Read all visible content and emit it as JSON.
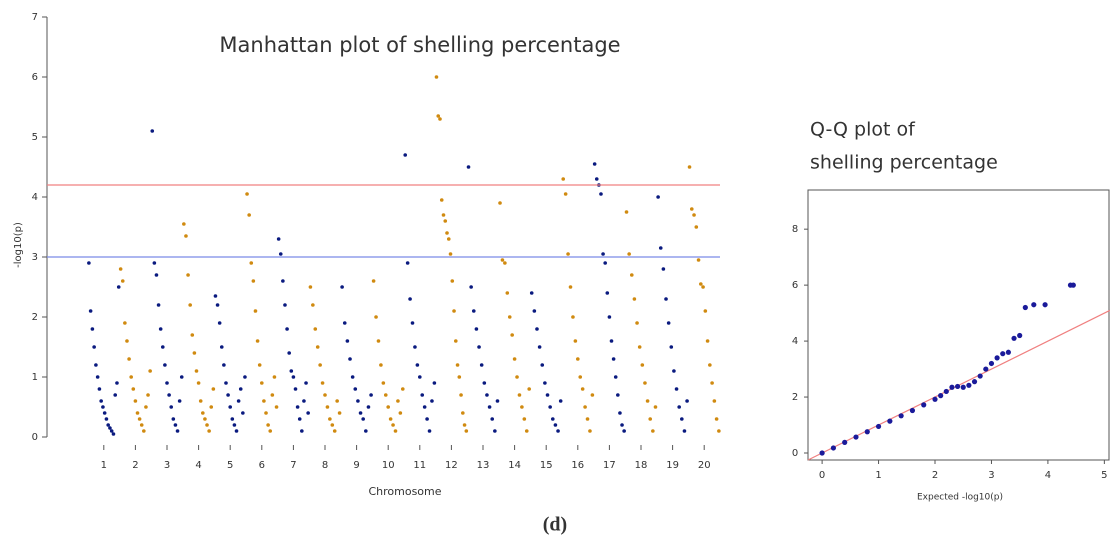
{
  "chart_data": [
    {
      "type": "manhattan",
      "title": "Manhattan plot of shelling percentage",
      "xlabel": "Chromosome",
      "ylabel": "-log10(p)",
      "ylim": [
        0,
        7
      ],
      "yticks": [
        0,
        1,
        2,
        3,
        4,
        5,
        6,
        7
      ],
      "colors": [
        "#0a1a7f",
        "#d08a10"
      ],
      "thresholds": [
        {
          "value": 4.2,
          "color": "#f08080"
        },
        {
          "value": 3,
          "color": "#7a8ae8"
        }
      ],
      "categories": [
        "1",
        "2",
        "3",
        "4",
        "5",
        "6",
        "7",
        "8",
        "9",
        "10",
        "11",
        "12",
        "13",
        "14",
        "15",
        "16",
        "17",
        "18",
        "19",
        "20"
      ],
      "values": [
        [
          2.9,
          2.1,
          1.8,
          1.5,
          1.2,
          1.0,
          0.8,
          0.6,
          0.5,
          0.4,
          0.3,
          0.2,
          0.15,
          0.1,
          0.05,
          0.7,
          0.9,
          2.5
        ],
        [
          2.8,
          2.6,
          1.9,
          1.6,
          1.3,
          1.0,
          0.8,
          0.6,
          0.4,
          0.3,
          0.2,
          0.1,
          0.5,
          0.7,
          1.1
        ],
        [
          5.1,
          2.9,
          2.7,
          2.2,
          1.8,
          1.5,
          1.2,
          0.9,
          0.7,
          0.5,
          0.3,
          0.2,
          0.1,
          0.6,
          1.0
        ],
        [
          3.55,
          3.35,
          2.7,
          2.2,
          1.7,
          1.4,
          1.1,
          0.9,
          0.6,
          0.4,
          0.3,
          0.2,
          0.1,
          0.5,
          0.8
        ],
        [
          2.35,
          2.2,
          1.9,
          1.5,
          1.2,
          0.9,
          0.7,
          0.5,
          0.3,
          0.2,
          0.1,
          0.6,
          0.8,
          0.4,
          1.0
        ],
        [
          4.05,
          3.7,
          2.9,
          2.6,
          2.1,
          1.6,
          1.2,
          0.9,
          0.6,
          0.4,
          0.2,
          0.1,
          0.7,
          1.0,
          0.5
        ],
        [
          3.3,
          3.05,
          2.6,
          2.2,
          1.8,
          1.4,
          1.1,
          1.0,
          0.8,
          0.5,
          0.3,
          0.1,
          0.6,
          0.9,
          0.4
        ],
        [
          2.5,
          2.2,
          1.8,
          1.5,
          1.2,
          0.9,
          0.7,
          0.5,
          0.3,
          0.2,
          0.1,
          0.6,
          0.4
        ],
        [
          2.5,
          1.9,
          1.6,
          1.3,
          1.0,
          0.8,
          0.6,
          0.4,
          0.3,
          0.1,
          0.5,
          0.7
        ],
        [
          2.6,
          2.0,
          1.6,
          1.2,
          0.9,
          0.7,
          0.5,
          0.3,
          0.2,
          0.1,
          0.6,
          0.4,
          0.8
        ],
        [
          4.7,
          2.9,
          2.3,
          1.9,
          1.5,
          1.2,
          1.0,
          0.7,
          0.5,
          0.3,
          0.1,
          0.6,
          0.9
        ],
        [
          6.0,
          5.35,
          5.3,
          3.95,
          3.7,
          3.6,
          3.4,
          3.3,
          3.05,
          2.6,
          2.1,
          1.6,
          1.2,
          1.0,
          0.7,
          0.4,
          0.2,
          0.1
        ],
        [
          4.5,
          2.5,
          2.1,
          1.8,
          1.5,
          1.2,
          0.9,
          0.7,
          0.5,
          0.3,
          0.1,
          0.6
        ],
        [
          3.9,
          2.95,
          2.9,
          2.4,
          2.0,
          1.7,
          1.3,
          1.0,
          0.7,
          0.5,
          0.3,
          0.1,
          0.8
        ],
        [
          2.4,
          2.1,
          1.8,
          1.5,
          1.2,
          0.9,
          0.7,
          0.5,
          0.3,
          0.2,
          0.1,
          0.6
        ],
        [
          4.3,
          4.05,
          3.05,
          2.5,
          2.0,
          1.6,
          1.3,
          1.0,
          0.8,
          0.5,
          0.3,
          0.1,
          0.7
        ],
        [
          4.55,
          4.3,
          4.2,
          4.05,
          3.05,
          2.9,
          2.4,
          2.0,
          1.6,
          1.3,
          1.0,
          0.7,
          0.4,
          0.2,
          0.1
        ],
        [
          3.75,
          3.05,
          2.7,
          2.3,
          1.9,
          1.5,
          1.2,
          0.9,
          0.6,
          0.3,
          0.1,
          0.5
        ],
        [
          4.0,
          3.15,
          2.8,
          2.3,
          1.9,
          1.5,
          1.1,
          0.8,
          0.5,
          0.3,
          0.1,
          0.6
        ],
        [
          4.5,
          3.8,
          3.7,
          3.5,
          2.95,
          2.55,
          2.5,
          2.1,
          1.6,
          1.2,
          0.9,
          0.6,
          0.3,
          0.1
        ]
      ]
    },
    {
      "type": "qq",
      "title": [
        "Q-Q plot of",
        "shelling percentage"
      ],
      "xlabel": "Expected -log10(p)",
      "xlim": [
        -0.25,
        5.1
      ],
      "ylim": [
        -0.25,
        9.4
      ],
      "xticks": [
        0,
        1,
        2,
        3,
        4,
        5
      ],
      "yticks": [
        0,
        2,
        4,
        6,
        8
      ],
      "color": "#1a1a9a",
      "reference_color": "#f08080",
      "x": [
        0,
        0.2,
        0.4,
        0.6,
        0.8,
        1.0,
        1.2,
        1.4,
        1.6,
        1.8,
        2.0,
        2.1,
        2.2,
        2.3,
        2.4,
        2.5,
        2.6,
        2.7,
        2.8,
        2.9,
        3.0,
        3.1,
        3.2,
        3.3,
        3.4,
        3.5,
        3.6,
        3.75,
        3.95,
        4.4,
        4.45
      ],
      "y": [
        0,
        0.18,
        0.38,
        0.57,
        0.76,
        0.95,
        1.14,
        1.33,
        1.52,
        1.72,
        1.92,
        2.05,
        2.2,
        2.35,
        2.38,
        2.35,
        2.42,
        2.55,
        2.75,
        3.0,
        3.2,
        3.4,
        3.55,
        3.6,
        4.1,
        4.2,
        5.2,
        5.3,
        5.3,
        6.0,
        6.0
      ]
    }
  ],
  "caption": "(d)"
}
